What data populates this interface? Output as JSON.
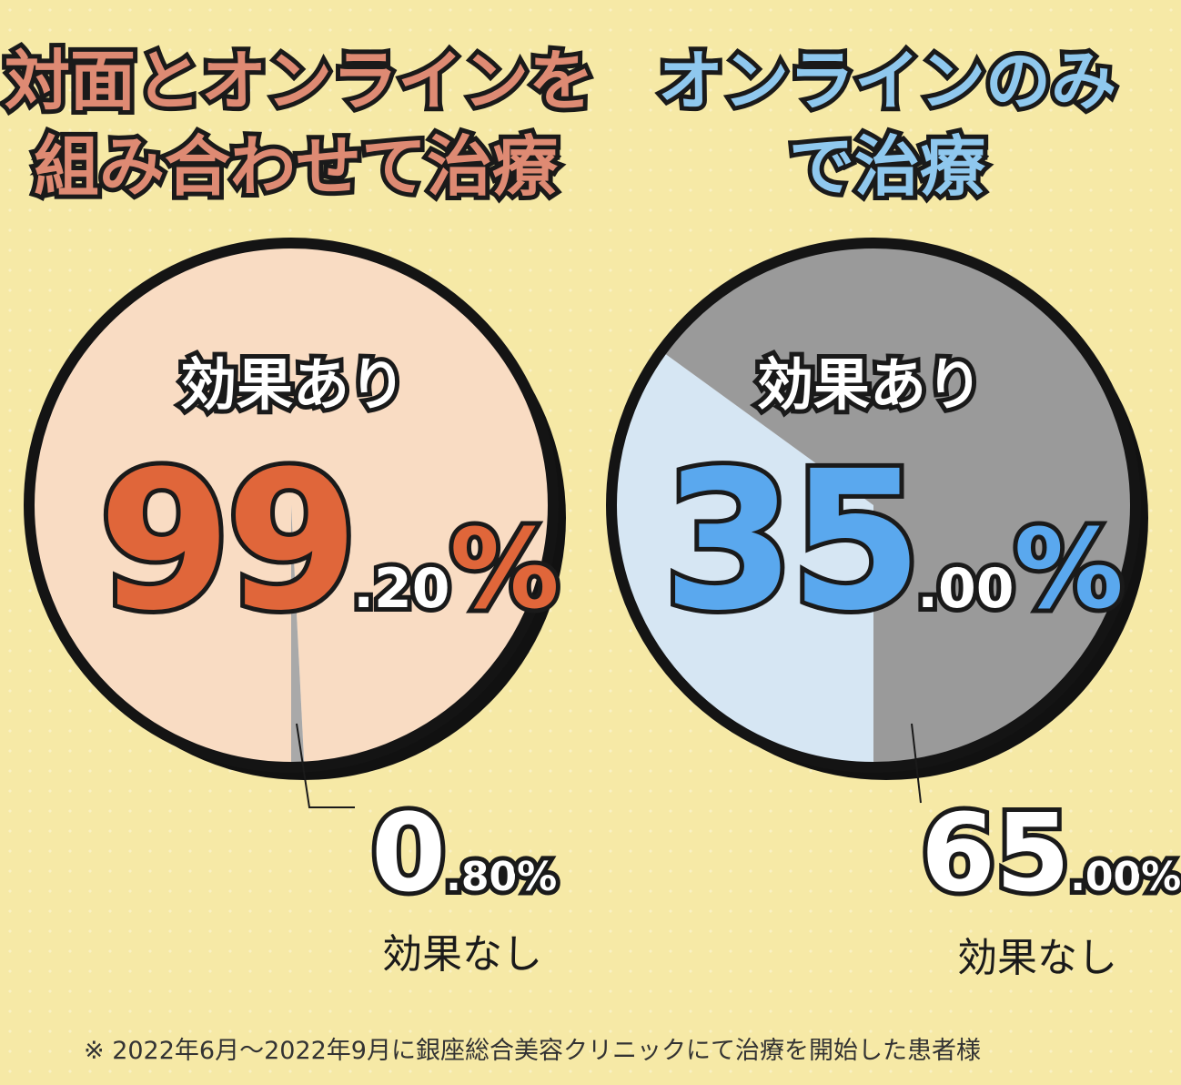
{
  "chart_data": [
    {
      "type": "pie",
      "title": "対面とオンラインを組み合わせて治療",
      "title_lines": [
        "対面とオンラインを",
        "組み合わせて治療"
      ],
      "slices": [
        {
          "label": "効果あり",
          "value": 99.2,
          "int": "99",
          "dec": ".20",
          "pct": "%",
          "color": "#f9dcc3"
        },
        {
          "label": "効果なし",
          "value": 0.8,
          "int": "0",
          "dec": ".80",
          "pct": "%",
          "color": "#a9a9a9"
        }
      ]
    },
    {
      "type": "pie",
      "title": "オンラインのみで治療",
      "title_lines": [
        "オンラインのみ",
        "で治療"
      ],
      "slices": [
        {
          "label": "効果あり",
          "value": 35.0,
          "int": "35",
          "dec": ".00",
          "pct": "%",
          "color": "#d6e6f3"
        },
        {
          "label": "効果なし",
          "value": 65.0,
          "int": "65",
          "dec": ".00",
          "pct": "%",
          "color": "#9a9a9a"
        }
      ]
    }
  ],
  "colors": {
    "left_title": "#de8a73",
    "right_title": "#8fc8ee",
    "left_big_number": "#e0663a",
    "right_big_number": "#5aa8ee",
    "background": "#f6e9a6"
  },
  "footnote": "※ 2022年6月～2022年9月に銀座総合美容クリニックにて治療を開始した患者様"
}
